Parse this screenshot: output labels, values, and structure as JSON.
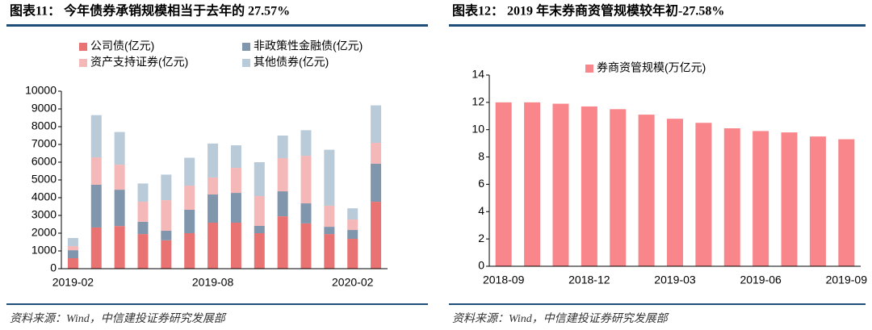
{
  "chart_data": [
    {
      "type": "bar",
      "stacked": true,
      "title": "图表11：  今年债券承销规模相当于去年的 27.57%",
      "source": "资料来源：Wind，中信建投证券研究发展部",
      "categories": [
        "2019-02",
        null,
        null,
        null,
        null,
        null,
        "2019-08",
        null,
        null,
        null,
        null,
        null,
        "2020-02",
        null
      ],
      "series": [
        {
          "name": "公司债(亿元)",
          "color": "#e97373",
          "values": [
            590,
            2320,
            2400,
            1950,
            1600,
            2000,
            2590,
            2590,
            2000,
            2950,
            2550,
            1950,
            1680,
            3770
          ]
        },
        {
          "name": "非政策性金融债(亿元)",
          "color": "#7f96ad",
          "values": [
            450,
            2410,
            2050,
            690,
            540,
            1320,
            1590,
            1680,
            410,
            1410,
            1130,
            410,
            500,
            2140
          ]
        },
        {
          "name": "资产支持证券(亿元)",
          "color": "#f5b8b8",
          "values": [
            230,
            1540,
            1410,
            1130,
            1720,
            1360,
            960,
            1410,
            1680,
            1870,
            2680,
            1190,
            590,
            1180
          ]
        },
        {
          "name": "其他债券(亿元)",
          "color": "#b9cad8",
          "values": [
            460,
            2380,
            1840,
            1030,
            1440,
            1570,
            1910,
            1270,
            1910,
            1270,
            1440,
            3150,
            630,
            2110
          ]
        }
      ],
      "ylim": [
        0,
        10000
      ],
      "yticks": [
        0,
        1000,
        2000,
        3000,
        4000,
        5000,
        6000,
        7000,
        8000,
        9000,
        10000
      ]
    },
    {
      "type": "bar",
      "stacked": false,
      "title": "图表12：  2019 年末券商资管规模较年初-27.58%",
      "source": "资料来源：Wind，中信建投证券研究发展部",
      "categories": [
        "2018-09",
        null,
        null,
        "2018-12",
        null,
        null,
        "2019-03",
        null,
        null,
        "2019-06",
        null,
        null,
        "2019-09"
      ],
      "series": [
        {
          "name": "券商资管规模(万亿元)",
          "color": "#f8868a",
          "values": [
            12.0,
            12.0,
            11.9,
            11.7,
            11.5,
            11.1,
            10.8,
            10.5,
            10.1,
            9.9,
            9.8,
            9.5,
            9.3
          ]
        }
      ],
      "ylim": [
        0,
        14
      ],
      "yticks": [
        0,
        2,
        4,
        6,
        8,
        10,
        12,
        14
      ]
    }
  ]
}
